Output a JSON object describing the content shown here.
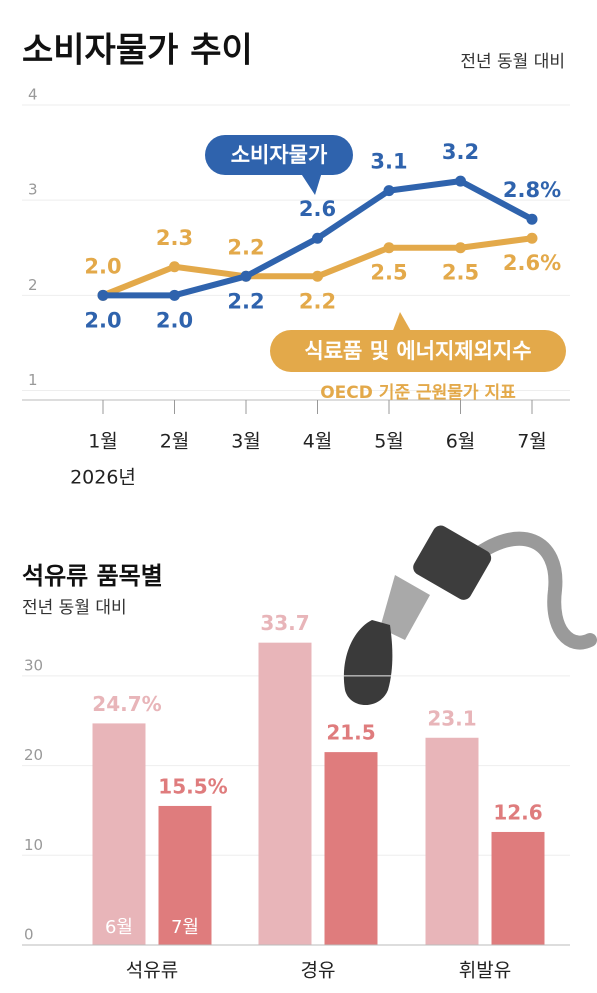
{
  "chart_data": [
    {
      "type": "line",
      "title": "소비자물가 추이",
      "subtitle": "전년 동월 대비",
      "categories": [
        "1월",
        "2월",
        "3월",
        "4월",
        "5월",
        "6월",
        "7월"
      ],
      "x_note": "2026년",
      "series": [
        {
          "name": "소비자물가",
          "color": "#2f63ad",
          "values": [
            2.0,
            2.0,
            2.2,
            2.6,
            3.1,
            3.2,
            2.8
          ],
          "value_labels": [
            "2.0",
            "2.0",
            "2.2",
            "2.6",
            "3.1",
            "3.2",
            "2.8%"
          ]
        },
        {
          "name": "식료품 및 에너지제외지수",
          "note": "OECD 기준 근원물가 지표",
          "color": "#e3a94a",
          "values": [
            2.0,
            2.3,
            2.2,
            2.2,
            2.5,
            2.5,
            2.6
          ],
          "value_labels": [
            "2.0",
            "2.3",
            "2.2",
            "2.2",
            "2.5",
            "2.5",
            "2.6%"
          ]
        }
      ],
      "ylim": [
        0.9,
        4
      ],
      "yticks": [
        1,
        2,
        3,
        4
      ],
      "grid": true
    },
    {
      "type": "bar",
      "title": "석유류 품목별",
      "subtitle": "전년 동월 대비",
      "categories": [
        "석유류",
        "경유",
        "휘발유"
      ],
      "series": [
        {
          "name": "6월",
          "color": "#e8b5b9",
          "values": [
            24.7,
            33.7,
            23.1
          ],
          "value_labels": [
            "24.7%",
            "33.7",
            "23.1"
          ]
        },
        {
          "name": "7월",
          "color": "#df7c7d",
          "values": [
            15.5,
            21.5,
            12.6
          ],
          "value_labels": [
            "15.5%",
            "21.5",
            "12.6"
          ]
        }
      ],
      "ylim": [
        0,
        35
      ],
      "yticks": [
        0,
        10,
        20,
        30
      ],
      "grid": true
    }
  ]
}
